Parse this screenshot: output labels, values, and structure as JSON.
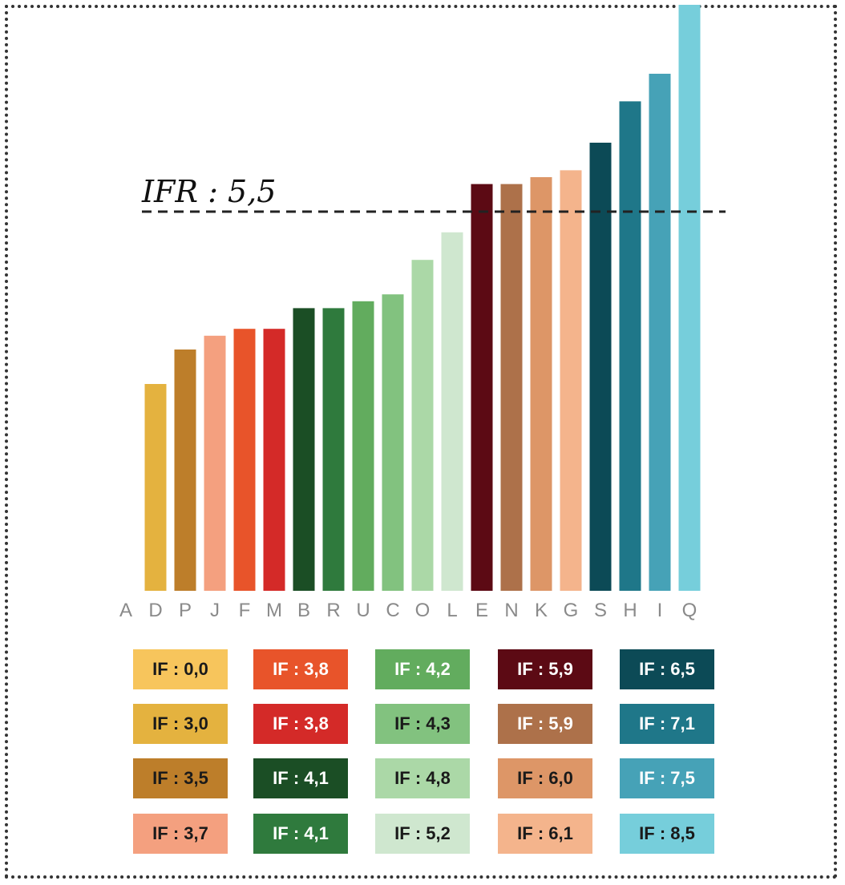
{
  "chart_data": {
    "type": "bar",
    "categories": [
      "A",
      "D",
      "P",
      "J",
      "F",
      "M",
      "B",
      "R",
      "U",
      "C",
      "O",
      "L",
      "E",
      "N",
      "K",
      "G",
      "S",
      "H",
      "I",
      "Q"
    ],
    "values": [
      0.0,
      3.0,
      3.5,
      3.7,
      3.8,
      3.8,
      4.1,
      4.1,
      4.2,
      4.3,
      4.8,
      5.2,
      5.9,
      5.9,
      6.0,
      6.1,
      6.5,
      7.1,
      7.5,
      8.5
    ],
    "colors": [
      "#f7c55c",
      "#e4b23f",
      "#bd7e2a",
      "#f4a07f",
      "#e8542a",
      "#d42a28",
      "#1b4e25",
      "#2f7a3d",
      "#62ac5e",
      "#82c27f",
      "#abd8a7",
      "#cfe7cf",
      "#5c0a14",
      "#ad714a",
      "#dd9667",
      "#f4b48c",
      "#0c4a56",
      "#1f7789",
      "#46a2b7",
      "#76cedb"
    ],
    "ylim": [
      0,
      8.5
    ],
    "reference_line": {
      "label": "IFR : 5,5",
      "value": 5.5
    },
    "grid": false
  },
  "legend": {
    "columns": [
      [
        {
          "label": "IF : 0,0",
          "color": "#f7c55c",
          "text_color": "#1a1a1a"
        },
        {
          "label": "IF : 3,0",
          "color": "#e4b23f",
          "text_color": "#1a1a1a"
        },
        {
          "label": "IF : 3,5",
          "color": "#bd7e2a",
          "text_color": "#1a1a1a"
        },
        {
          "label": "IF : 3,7",
          "color": "#f4a07f",
          "text_color": "#1a1a1a"
        }
      ],
      [
        {
          "label": "IF : 3,8",
          "color": "#e8542a",
          "text_color": "#ffffff"
        },
        {
          "label": "IF : 3,8",
          "color": "#d42a28",
          "text_color": "#ffffff"
        },
        {
          "label": "IF : 4,1",
          "color": "#1b4e25",
          "text_color": "#ffffff"
        },
        {
          "label": "IF : 4,1",
          "color": "#2f7a3d",
          "text_color": "#ffffff"
        }
      ],
      [
        {
          "label": "IF : 4,2",
          "color": "#62ac5e",
          "text_color": "#ffffff"
        },
        {
          "label": "IF : 4,3",
          "color": "#82c27f",
          "text_color": "#1a1a1a"
        },
        {
          "label": "IF : 4,8",
          "color": "#abd8a7",
          "text_color": "#1a1a1a"
        },
        {
          "label": "IF : 5,2",
          "color": "#cfe7cf",
          "text_color": "#1a1a1a"
        }
      ],
      [
        {
          "label": "IF : 5,9",
          "color": "#5c0a14",
          "text_color": "#ffffff"
        },
        {
          "label": "IF : 5,9",
          "color": "#ad714a",
          "text_color": "#ffffff"
        },
        {
          "label": "IF : 6,0",
          "color": "#dd9667",
          "text_color": "#1a1a1a"
        },
        {
          "label": "IF : 6,1",
          "color": "#f4b48c",
          "text_color": "#1a1a1a"
        }
      ],
      [
        {
          "label": "IF : 6,5",
          "color": "#0c4a56",
          "text_color": "#ffffff"
        },
        {
          "label": "IF : 7,1",
          "color": "#1f7789",
          "text_color": "#ffffff"
        },
        {
          "label": "IF : 7,5",
          "color": "#46a2b7",
          "text_color": "#ffffff"
        },
        {
          "label": "IF : 8,5",
          "color": "#76cedb",
          "text_color": "#1a1a1a"
        }
      ]
    ]
  }
}
